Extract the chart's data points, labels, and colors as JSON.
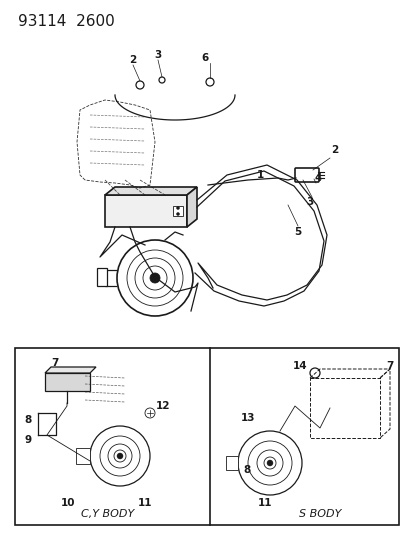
{
  "title": "93114  2600",
  "bg_color": "#ffffff",
  "line_color": "#1a1a1a",
  "title_fontsize": 11,
  "label_fontsize": 7.5,
  "fig_width": 4.14,
  "fig_height": 5.33,
  "dpi": 100
}
